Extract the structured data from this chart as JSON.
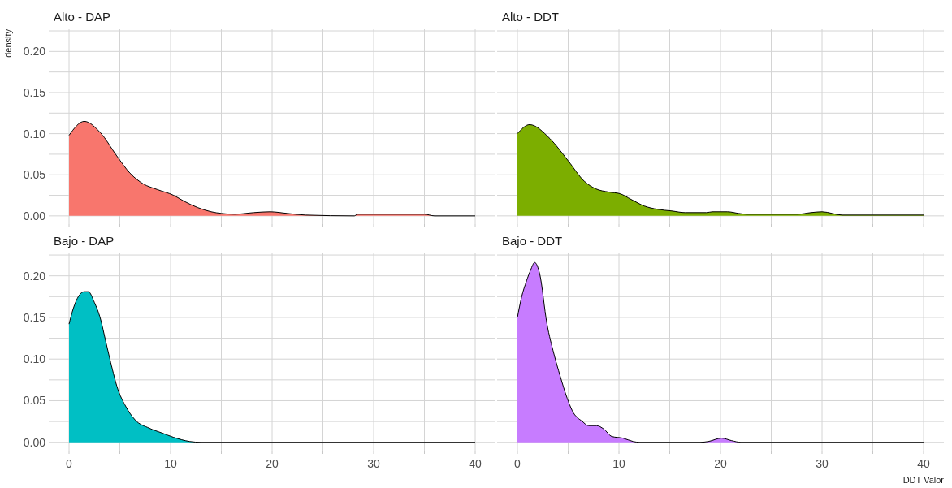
{
  "chart_data": [
    {
      "type": "area",
      "title": "Alto - DAP",
      "ylabel": "density",
      "tick_labels": "y",
      "grid": true,
      "xlim": [
        -2,
        42
      ],
      "ylim": [
        -0.01,
        0.227
      ],
      "xticks": [
        {
          "value": 0,
          "label": null
        },
        {
          "value": 5,
          "label": null
        },
        {
          "value": 10,
          "label": null
        },
        {
          "value": 15,
          "label": null
        },
        {
          "value": 20,
          "label": null
        },
        {
          "value": 25,
          "label": null
        },
        {
          "value": 30,
          "label": null
        },
        {
          "value": 35,
          "label": null
        },
        {
          "value": 40,
          "label": null
        }
      ],
      "yticks": [
        {
          "value": 0,
          "label": "0.00"
        },
        {
          "value": 0.025,
          "label": null
        },
        {
          "value": 0.05,
          "label": "0.05"
        },
        {
          "value": 0.075,
          "label": null
        },
        {
          "value": 0.1,
          "label": "0.10"
        },
        {
          "value": 0.125,
          "label": null
        },
        {
          "value": 0.15,
          "label": "0.15"
        },
        {
          "value": 0.175,
          "label": null
        },
        {
          "value": 0.2,
          "label": "0.20"
        },
        {
          "value": 0.225,
          "label": null
        }
      ],
      "series": [
        {
          "color": "#f8766d",
          "x": [
            0,
            1.5,
            3.1,
            4.7,
            6,
            7.3,
            8.7,
            10.3,
            11.3,
            12.7,
            14,
            15,
            16.3,
            18.2,
            19.8,
            21.5,
            23.3,
            28.1,
            28.4,
            30,
            35,
            36,
            40
          ],
          "values": [
            0.098,
            0.115,
            0.101,
            0.073,
            0.052,
            0.039,
            0.032,
            0.025,
            0.018,
            0.01,
            0.005,
            0.003,
            0.002,
            0.004,
            0.005,
            0.003,
            0.001,
            0,
            0.002,
            0.002,
            0.002,
            0,
            0
          ]
        }
      ]
    },
    {
      "type": "area",
      "title": "Alto - DDT",
      "tick_labels": false,
      "grid": true,
      "xlim": [
        -2,
        42
      ],
      "ylim": [
        -0.01,
        0.227
      ],
      "xticks": [
        {
          "value": 0,
          "label": null
        },
        {
          "value": 5,
          "label": null
        },
        {
          "value": 10,
          "label": null
        },
        {
          "value": 15,
          "label": null
        },
        {
          "value": 20,
          "label": null
        },
        {
          "value": 25,
          "label": null
        },
        {
          "value": 30,
          "label": null
        },
        {
          "value": 35,
          "label": null
        },
        {
          "value": 40,
          "label": null
        }
      ],
      "yticks": [
        {
          "value": 0,
          "label": null
        },
        {
          "value": 0.025,
          "label": null
        },
        {
          "value": 0.05,
          "label": null
        },
        {
          "value": 0.075,
          "label": null
        },
        {
          "value": 0.1,
          "label": null
        },
        {
          "value": 0.125,
          "label": null
        },
        {
          "value": 0.15,
          "label": null
        },
        {
          "value": 0.175,
          "label": null
        },
        {
          "value": 0.2,
          "label": null
        },
        {
          "value": 0.225,
          "label": null
        }
      ],
      "series": [
        {
          "color": "#7cae00",
          "x": [
            0,
            1.2,
            3.2,
            5,
            6.6,
            7.7,
            9,
            10.1,
            11.2,
            12.5,
            13.8,
            15.2,
            16.5,
            18.6,
            19.2,
            20.7,
            21.8,
            22.6,
            27.6,
            28.9,
            30,
            32,
            40
          ],
          "values": [
            0.1,
            0.111,
            0.094,
            0.067,
            0.042,
            0.033,
            0.029,
            0.027,
            0.02,
            0.012,
            0.008,
            0.006,
            0.004,
            0.004,
            0.005,
            0.005,
            0.003,
            0.002,
            0.002,
            0.004,
            0.005,
            0.001,
            0.001
          ]
        }
      ]
    },
    {
      "type": "area",
      "title": "Bajo - DAP",
      "grid": true,
      "xlim": [
        -2,
        42
      ],
      "ylim": [
        -0.01,
        0.227
      ],
      "xticks": [
        0,
        {
          "value": 5,
          "label": null
        },
        10,
        {
          "value": 15,
          "label": null
        },
        20,
        {
          "value": 25,
          "label": null
        },
        30,
        {
          "value": 35,
          "label": null
        },
        40
      ],
      "yticks": [
        {
          "value": 0,
          "label": "0.00"
        },
        {
          "value": 0.025,
          "label": null
        },
        {
          "value": 0.05,
          "label": "0.05"
        },
        {
          "value": 0.075,
          "label": null
        },
        {
          "value": 0.1,
          "label": "0.10"
        },
        {
          "value": 0.125,
          "label": null
        },
        {
          "value": 0.15,
          "label": "0.15"
        },
        {
          "value": 0.175,
          "label": null
        },
        {
          "value": 0.2,
          "label": "0.20"
        },
        {
          "value": 0.225,
          "label": null
        }
      ],
      "series": [
        {
          "color": "#00bfc4",
          "x": [
            0,
            0.4,
            1.5,
            1.9,
            2.5,
            3.1,
            3.6,
            4.1,
            4.8,
            5.5,
            6.5,
            7.9,
            9.2,
            10.3,
            11.9,
            13,
            40
          ],
          "values": [
            0.142,
            0.16,
            0.181,
            0.181,
            0.168,
            0.148,
            0.122,
            0.096,
            0.064,
            0.045,
            0.027,
            0.017,
            0.011,
            0.006,
            0.001,
            0,
            0
          ]
        }
      ]
    },
    {
      "type": "area",
      "title": "Bajo - DDT",
      "xlabel": "DDT  Valor",
      "tick_labels": "x",
      "grid": true,
      "xlim": [
        -2,
        42
      ],
      "ylim": [
        -0.01,
        0.227
      ],
      "xticks": [
        0,
        {
          "value": 5,
          "label": null
        },
        10,
        {
          "value": 15,
          "label": null
        },
        20,
        {
          "value": 25,
          "label": null
        },
        30,
        {
          "value": 35,
          "label": null
        },
        40
      ],
      "yticks": [
        {
          "value": 0,
          "label": null
        },
        {
          "value": 0.025,
          "label": null
        },
        {
          "value": 0.05,
          "label": null
        },
        {
          "value": 0.075,
          "label": null
        },
        {
          "value": 0.1,
          "label": null
        },
        {
          "value": 0.125,
          "label": null
        },
        {
          "value": 0.15,
          "label": null
        },
        {
          "value": 0.175,
          "label": null
        },
        {
          "value": 0.2,
          "label": null
        },
        {
          "value": 0.225,
          "label": null
        }
      ],
      "series": [
        {
          "color": "#c77cff",
          "x": [
            0,
            0.4,
            0.9,
            1.3,
            1.7,
            2.2,
            2.9,
            3.6,
            4.2,
            4.9,
            5.4,
            6.4,
            7,
            7.8,
            8.5,
            9.3,
            10.4,
            11.4,
            12,
            18,
            18.8,
            20.1,
            21.1,
            22,
            40
          ],
          "values": [
            0.15,
            0.174,
            0.194,
            0.207,
            0.216,
            0.202,
            0.143,
            0.106,
            0.08,
            0.053,
            0.038,
            0.025,
            0.02,
            0.02,
            0.016,
            0.007,
            0.005,
            0.001,
            0,
            0,
            0.001,
            0.005,
            0.002,
            0,
            0
          ]
        }
      ]
    }
  ]
}
